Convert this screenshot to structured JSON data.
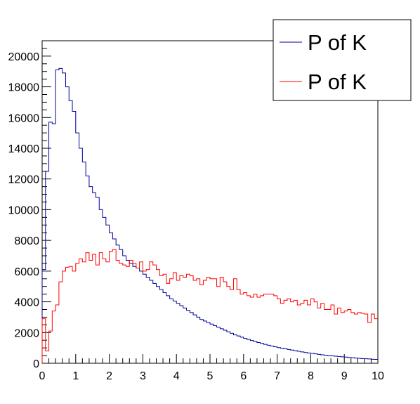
{
  "chart_data": {
    "type": "line",
    "step": true,
    "xlim": [
      0,
      10
    ],
    "ylim": [
      0,
      21000
    ],
    "x_tick_labels": [
      "0",
      "1",
      "2",
      "3",
      "4",
      "5",
      "6",
      "7",
      "8",
      "9",
      "10"
    ],
    "y_tick_labels": [
      "0",
      "2000",
      "4000",
      "6000",
      "8000",
      "10000",
      "12000",
      "14000",
      "16000",
      "18000",
      "20000"
    ],
    "bin_edges": [
      0,
      0.1,
      0.2,
      0.3,
      0.4,
      0.5,
      0.6,
      0.7,
      0.8,
      0.9,
      1.0,
      1.1,
      1.2,
      1.3,
      1.4,
      1.5,
      1.6,
      1.7,
      1.8,
      1.9,
      2.0,
      2.1,
      2.2,
      2.3,
      2.4,
      2.5,
      2.6,
      2.7,
      2.8,
      2.9,
      3.0,
      3.1,
      3.2,
      3.3,
      3.4,
      3.5,
      3.6,
      3.7,
      3.8,
      3.9,
      4.0,
      4.1,
      4.2,
      4.3,
      4.4,
      4.5,
      4.6,
      4.7,
      4.8,
      4.9,
      5.0,
      5.1,
      5.2,
      5.3,
      5.4,
      5.5,
      5.6,
      5.7,
      5.8,
      5.9,
      6.0,
      6.1,
      6.2,
      6.3,
      6.4,
      6.5,
      6.6,
      6.7,
      6.8,
      6.9,
      7.0,
      7.1,
      7.2,
      7.3,
      7.4,
      7.5,
      7.6,
      7.7,
      7.8,
      7.9,
      8.0,
      8.1,
      8.2,
      8.3,
      8.4,
      8.5,
      8.6,
      8.7,
      8.8,
      8.9,
      9.0,
      9.1,
      9.2,
      9.3,
      9.4,
      9.5,
      9.6,
      9.7,
      9.8,
      9.9,
      10.0
    ],
    "series": [
      {
        "name": "P of K",
        "color": "#000099",
        "values": [
          6100,
          12500,
          15700,
          15600,
          19100,
          19200,
          18900,
          18000,
          17100,
          16400,
          15000,
          14000,
          13100,
          12200,
          11500,
          11100,
          10800,
          10000,
          9500,
          9000,
          8500,
          8100,
          7700,
          7400,
          7000,
          6700,
          6500,
          6300,
          6200,
          6000,
          5800,
          5600,
          5400,
          5200,
          5000,
          4800,
          4600,
          4400,
          4200,
          4050,
          3900,
          3750,
          3600,
          3450,
          3300,
          3150,
          3000,
          2850,
          2750,
          2650,
          2550,
          2450,
          2350,
          2250,
          2150,
          2050,
          1950,
          1850,
          1780,
          1700,
          1620,
          1550,
          1480,
          1410,
          1350,
          1290,
          1230,
          1170,
          1120,
          1070,
          1020,
          980,
          940,
          900,
          860,
          820,
          780,
          740,
          700,
          670,
          640,
          610,
          580,
          550,
          520,
          500,
          480,
          460,
          440,
          420,
          400,
          380,
          360,
          340,
          320,
          300,
          290,
          280,
          260,
          250
        ]
      },
      {
        "name": "P of K",
        "color": "#ff0000",
        "values": [
          2900,
          800,
          2100,
          3400,
          3800,
          5300,
          6000,
          6250,
          6300,
          6000,
          6500,
          6800,
          6600,
          7200,
          6700,
          7100,
          6400,
          7200,
          6800,
          6600,
          7300,
          7400,
          6700,
          6500,
          6400,
          6300,
          6700,
          6500,
          6200,
          6600,
          6000,
          6100,
          6600,
          6400,
          6100,
          5700,
          5800,
          5200,
          5500,
          5900,
          5400,
          5700,
          5600,
          5800,
          5700,
          5400,
          5500,
          5100,
          5400,
          5600,
          5500,
          5500,
          5000,
          5600,
          5300,
          5000,
          4800,
          5500,
          4800,
          4500,
          4600,
          4400,
          4300,
          4500,
          4300,
          4400,
          4500,
          4500,
          4500,
          4400,
          4200,
          3900,
          4100,
          4200,
          4000,
          4100,
          3800,
          3900,
          4100,
          3800,
          4200,
          4000,
          3600,
          3900,
          3500,
          3500,
          3800,
          3200,
          3600,
          3300,
          3400,
          3500,
          3300,
          3200,
          3300,
          3250,
          3200,
          2650,
          3200,
          2900
        ]
      }
    ],
    "legend_position": "top-right"
  }
}
